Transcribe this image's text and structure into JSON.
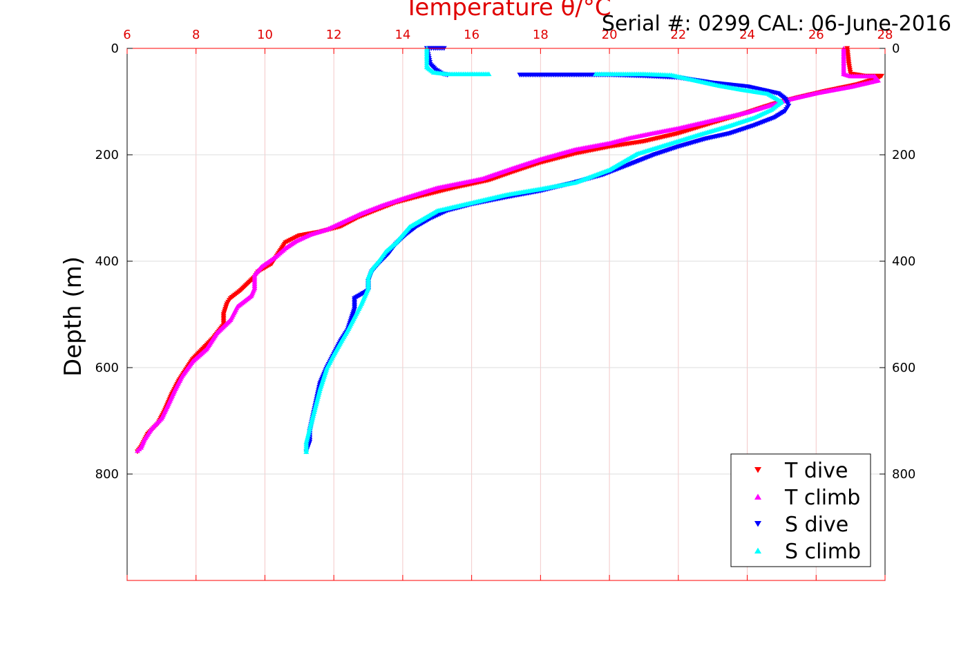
{
  "chart_data": {
    "type": "scatter",
    "title": "Serial #: 0299 CAL: 06-June-2016",
    "xlabel": "Temperature θ/°C",
    "ylabel": "Depth (m)",
    "xlim": [
      6,
      28
    ],
    "ylim": [
      0,
      1000
    ],
    "y_reversed": true,
    "x_ticks": [
      "6",
      "8",
      "10",
      "12",
      "14",
      "16",
      "18",
      "20",
      "22",
      "24",
      "26",
      "28"
    ],
    "y_ticks": [
      "0",
      "200",
      "400",
      "600",
      "800"
    ],
    "grid": true,
    "legend_position": "bottom-right",
    "colors": {
      "axis_top": "#ff0000",
      "grid": "#dddddd",
      "grid_pink": "#f3c8c8"
    },
    "series": [
      {
        "name": "T dive",
        "marker": "triangle-down",
        "color": "#ff0000",
        "points": [
          [
            26.9,
            0
          ],
          [
            26.95,
            30
          ],
          [
            27.0,
            48
          ],
          [
            27.4,
            52
          ],
          [
            27.9,
            52
          ],
          [
            27.8,
            56
          ],
          [
            27.2,
            68
          ],
          [
            26.3,
            80
          ],
          [
            25.5,
            92
          ],
          [
            24.9,
            102
          ],
          [
            24.5,
            110
          ],
          [
            23.8,
            125
          ],
          [
            23.0,
            140
          ],
          [
            22.0,
            160
          ],
          [
            21.0,
            175
          ],
          [
            20.0,
            185
          ],
          [
            19.0,
            198
          ],
          [
            18.0,
            215
          ],
          [
            17.3,
            230
          ],
          [
            16.5,
            248
          ],
          [
            15.5,
            262
          ],
          [
            14.5,
            278
          ],
          [
            13.8,
            290
          ],
          [
            13.2,
            305
          ],
          [
            12.7,
            318
          ],
          [
            12.2,
            335
          ],
          [
            11.6,
            345
          ],
          [
            11.0,
            352
          ],
          [
            10.6,
            365
          ],
          [
            10.4,
            385
          ],
          [
            10.2,
            405
          ],
          [
            9.8,
            420
          ],
          [
            9.7,
            430
          ],
          [
            9.3,
            455
          ],
          [
            9.0,
            470
          ],
          [
            8.9,
            480
          ],
          [
            8.8,
            500
          ],
          [
            8.8,
            520
          ],
          [
            8.5,
            545
          ],
          [
            8.2,
            565
          ],
          [
            7.9,
            585
          ],
          [
            7.7,
            605
          ],
          [
            7.5,
            625
          ],
          [
            7.3,
            650
          ],
          [
            7.1,
            680
          ],
          [
            6.9,
            705
          ],
          [
            6.6,
            725
          ],
          [
            6.4,
            750
          ],
          [
            6.3,
            758
          ]
        ]
      },
      {
        "name": "T climb",
        "marker": "triangle-up",
        "color": "#ff00ff",
        "points": [
          [
            26.8,
            0
          ],
          [
            26.8,
            30
          ],
          [
            26.8,
            48
          ],
          [
            27.0,
            52
          ],
          [
            27.7,
            52
          ],
          [
            27.8,
            60
          ],
          [
            27.0,
            72
          ],
          [
            26.0,
            84
          ],
          [
            25.2,
            96
          ],
          [
            24.6,
            108
          ],
          [
            24.0,
            120
          ],
          [
            23.0,
            135
          ],
          [
            22.0,
            150
          ],
          [
            21.2,
            160
          ],
          [
            20.6,
            168
          ],
          [
            20.0,
            178
          ],
          [
            19.0,
            190
          ],
          [
            18.0,
            208
          ],
          [
            17.2,
            225
          ],
          [
            16.3,
            245
          ],
          [
            15.0,
            262
          ],
          [
            14.0,
            282
          ],
          [
            13.4,
            295
          ],
          [
            12.8,
            310
          ],
          [
            12.3,
            325
          ],
          [
            11.8,
            340
          ],
          [
            11.3,
            350
          ],
          [
            10.9,
            362
          ],
          [
            10.6,
            375
          ],
          [
            10.3,
            392
          ],
          [
            9.9,
            410
          ],
          [
            9.7,
            425
          ],
          [
            9.7,
            450
          ],
          [
            9.6,
            465
          ],
          [
            9.2,
            485
          ],
          [
            9.0,
            510
          ],
          [
            8.6,
            535
          ],
          [
            8.3,
            565
          ],
          [
            7.9,
            588
          ],
          [
            7.6,
            615
          ],
          [
            7.4,
            640
          ],
          [
            7.2,
            668
          ],
          [
            7.0,
            695
          ],
          [
            6.7,
            715
          ],
          [
            6.5,
            735
          ],
          [
            6.4,
            750
          ],
          [
            6.3,
            756
          ]
        ]
      },
      {
        "name": "S dive",
        "marker": "triangle-down",
        "color": "#0000ff",
        "points": [
          [
            15.2,
            0
          ],
          [
            14.9,
            0
          ],
          [
            14.7,
            0
          ],
          [
            14.75,
            15
          ],
          [
            14.8,
            30
          ],
          [
            14.95,
            40
          ],
          [
            15.15,
            48
          ],
          [
            15.3,
            50
          ],
          [
            17.4,
            50
          ],
          [
            19.2,
            50
          ],
          [
            20.0,
            50
          ],
          [
            21.0,
            52
          ],
          [
            22.0,
            55
          ],
          [
            23.0,
            65
          ],
          [
            24.0,
            72
          ],
          [
            24.9,
            85
          ],
          [
            25.1,
            95
          ],
          [
            25.2,
            108
          ],
          [
            25.1,
            118
          ],
          [
            24.8,
            130
          ],
          [
            24.2,
            145
          ],
          [
            23.5,
            160
          ],
          [
            22.8,
            170
          ],
          [
            22.0,
            185
          ],
          [
            21.3,
            200
          ],
          [
            20.6,
            218
          ],
          [
            19.8,
            238
          ],
          [
            19.0,
            252
          ],
          [
            18.0,
            268
          ],
          [
            17.0,
            280
          ],
          [
            16.0,
            293
          ],
          [
            15.3,
            305
          ],
          [
            14.8,
            320
          ],
          [
            14.4,
            335
          ],
          [
            14.1,
            350
          ],
          [
            13.8,
            368
          ],
          [
            13.6,
            385
          ],
          [
            13.3,
            405
          ],
          [
            13.1,
            420
          ],
          [
            13.0,
            438
          ],
          [
            13.0,
            455
          ],
          [
            12.6,
            470
          ],
          [
            12.6,
            490
          ],
          [
            12.5,
            510
          ],
          [
            12.4,
            530
          ],
          [
            12.2,
            550
          ],
          [
            12.0,
            575
          ],
          [
            11.8,
            600
          ],
          [
            11.6,
            630
          ],
          [
            11.5,
            660
          ],
          [
            11.4,
            690
          ],
          [
            11.3,
            720
          ],
          [
            11.3,
            740
          ],
          [
            11.2,
            758
          ]
        ]
      },
      {
        "name": "S climb",
        "marker": "triangle-up",
        "color": "#00ffff",
        "points": [
          [
            14.7,
            0
          ],
          [
            14.7,
            20
          ],
          [
            14.7,
            35
          ],
          [
            14.9,
            45
          ],
          [
            15.3,
            48
          ],
          [
            16.5,
            48
          ],
          [
            19.6,
            48
          ],
          [
            20.2,
            48
          ],
          [
            21.0,
            48
          ],
          [
            21.8,
            50
          ],
          [
            22.5,
            60
          ],
          [
            23.2,
            70
          ],
          [
            23.9,
            78
          ],
          [
            24.6,
            85
          ],
          [
            25.0,
            100
          ],
          [
            24.7,
            115
          ],
          [
            24.2,
            130
          ],
          [
            23.5,
            145
          ],
          [
            22.6,
            162
          ],
          [
            21.6,
            182
          ],
          [
            20.8,
            198
          ],
          [
            20.0,
            228
          ],
          [
            19.0,
            252
          ],
          [
            18.0,
            264
          ],
          [
            17.0,
            275
          ],
          [
            16.0,
            290
          ],
          [
            15.0,
            305
          ],
          [
            14.6,
            320
          ],
          [
            14.2,
            335
          ],
          [
            14.0,
            350
          ],
          [
            13.8,
            365
          ],
          [
            13.5,
            382
          ],
          [
            13.3,
            400
          ],
          [
            13.1,
            415
          ],
          [
            13.0,
            430
          ],
          [
            13.0,
            450
          ],
          [
            12.8,
            480
          ],
          [
            12.6,
            505
          ],
          [
            12.4,
            530
          ],
          [
            12.2,
            552
          ],
          [
            12.0,
            575
          ],
          [
            11.8,
            600
          ],
          [
            11.7,
            620
          ],
          [
            11.6,
            640
          ],
          [
            11.5,
            665
          ],
          [
            11.4,
            690
          ],
          [
            11.3,
            715
          ],
          [
            11.2,
            740
          ],
          [
            11.2,
            758
          ]
        ]
      }
    ]
  }
}
